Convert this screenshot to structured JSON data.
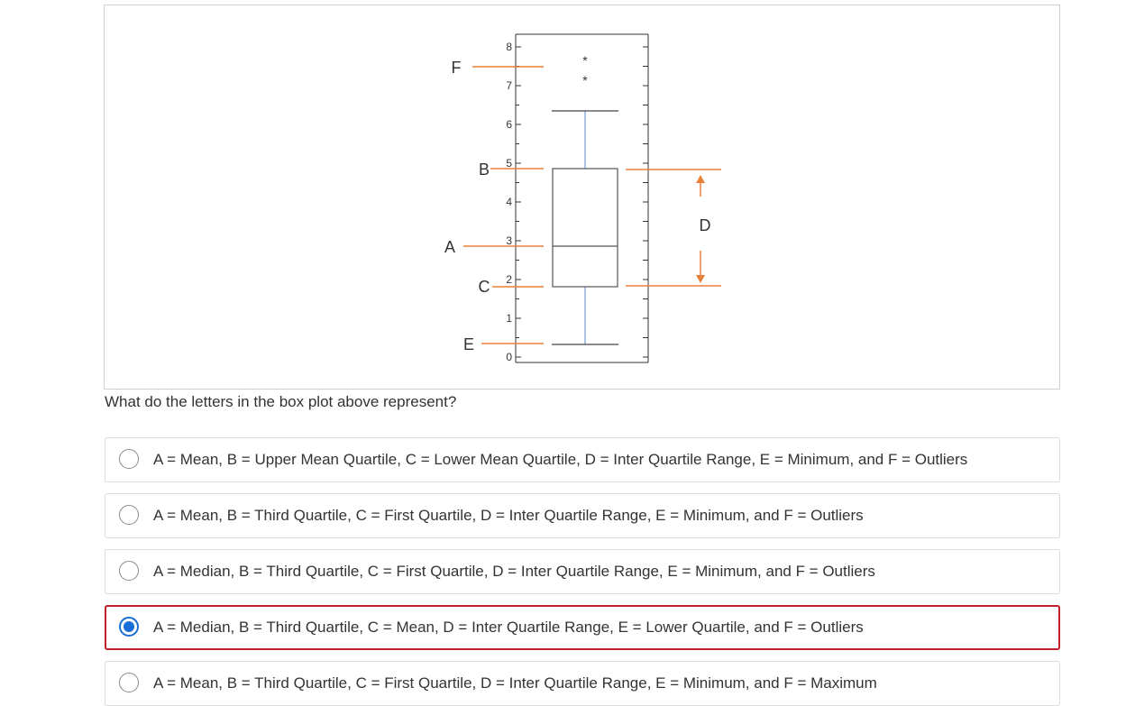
{
  "figure": {
    "axis_ticks": [
      "0",
      "1",
      "2",
      "3",
      "4",
      "5",
      "6",
      "7",
      "8"
    ],
    "outlier_markers": [
      "*",
      "*"
    ],
    "letters": {
      "F": "F",
      "B": "B",
      "A": "A",
      "C": "C",
      "E": "E",
      "D": "D"
    },
    "colors": {
      "annotation": "#e8803a",
      "whisker": "#8fb0dd",
      "box": "#555555"
    }
  },
  "question": "What do the letters in the box plot above represent?",
  "options": [
    {
      "label": "A = Mean, B = Upper Mean Quartile, C = Lower Mean Quartile, D = Inter Quartile Range, E = Minimum, and F = Outliers",
      "selected": false
    },
    {
      "label": "A = Mean, B = Third Quartile, C = First Quartile, D = Inter Quartile Range, E = Minimum, and F = Outliers",
      "selected": false
    },
    {
      "label": "A = Median, B = Third Quartile, C = First Quartile, D = Inter Quartile Range, E = Minimum, and F = Outliers",
      "selected": false
    },
    {
      "label": "A = Median, B = Third Quartile, C = Mean, D = Inter Quartile Range, E = Lower Quartile, and F = Outliers",
      "selected": true
    },
    {
      "label": "A = Mean, B = Third Quartile, C = First Quartile, D = Inter Quartile Range, E = Minimum, and F = Maximum",
      "selected": false
    }
  ],
  "selection_colors": {
    "selected_border": "#c0202a",
    "radio_fill": "#1a6ed8"
  }
}
